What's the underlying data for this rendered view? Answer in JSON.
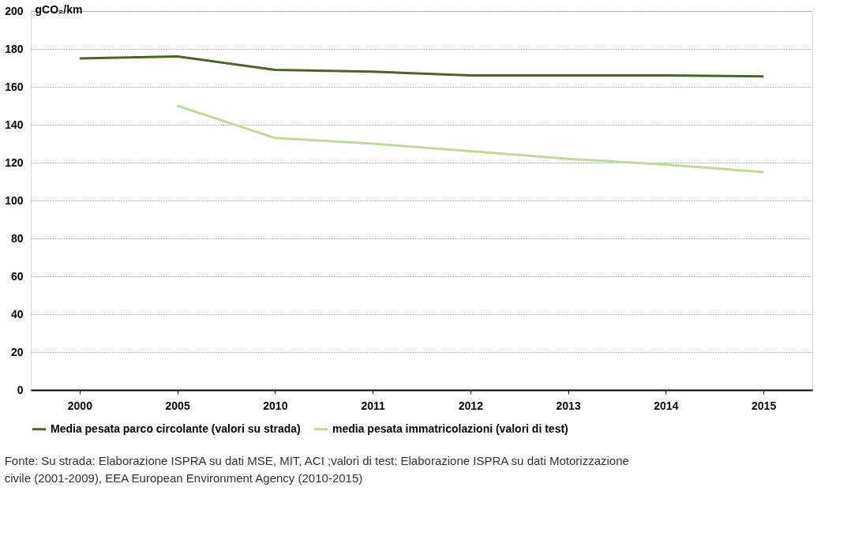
{
  "chart_data": {
    "type": "line",
    "ylabel": "gCO₂/km",
    "categories": [
      "2000",
      "2005",
      "2010",
      "2011",
      "2012",
      "2013",
      "2014",
      "2015"
    ],
    "series": [
      {
        "name": "Media pesata parco circolante (valori su strada)",
        "color": "#4f6228",
        "values": [
          175,
          176,
          169,
          168,
          166,
          166,
          166,
          165.5
        ]
      },
      {
        "name": "media pesata immatricolazioni (valori di test)",
        "color": "#c3d69b",
        "values": [
          null,
          150,
          133,
          130,
          126,
          122,
          119,
          115
        ]
      }
    ],
    "ylim": [
      0,
      200
    ],
    "yticks": [
      0,
      20,
      40,
      60,
      80,
      100,
      120,
      140,
      160,
      180,
      200
    ],
    "grid": "y",
    "legend": "bottom",
    "marker": "none",
    "line_style": "solid",
    "annotations": [
      "Fonte: Su strada: Elaborazione ISPRA su dati MSE, MIT, ACI ;valori di test: Elaborazione ISPRA su dati Motorizzazione civile (2001-2009), EEA European Environment Agency (2010-2015)"
    ]
  }
}
